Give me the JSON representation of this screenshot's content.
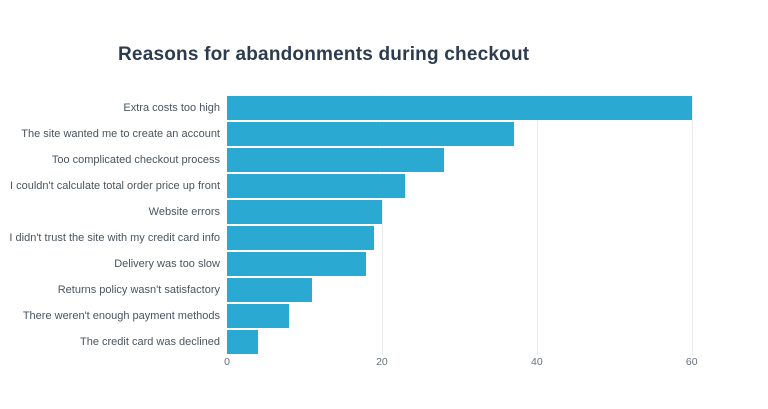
{
  "chart_data": {
    "type": "bar",
    "orientation": "horizontal",
    "title": "Reasons for abandonments during checkout",
    "categories": [
      "Extra costs too high",
      "The site wanted me to create an account",
      "Too complicated checkout process",
      "I couldn't calculate total order price up front",
      "Website errors",
      "I didn't trust the site with my credit card info",
      "Delivery was too slow",
      "Returns policy wasn't satisfactory",
      "There weren't enough payment methods",
      "The credit card was declined"
    ],
    "values": [
      60,
      37,
      28,
      23,
      20,
      19,
      18,
      11,
      8,
      4
    ],
    "xlabel": "",
    "ylabel": "",
    "x_ticks": [
      0,
      20,
      40,
      60
    ],
    "xlim": [
      0,
      67
    ],
    "grid": true,
    "legend_position": "none",
    "colors": {
      "bar": "#2aaad2",
      "title": "#2c3c4e",
      "category_label": "#4a545e",
      "tick_label": "#66707b",
      "gridline": "#e9ebec",
      "background": "#ffffff"
    }
  }
}
